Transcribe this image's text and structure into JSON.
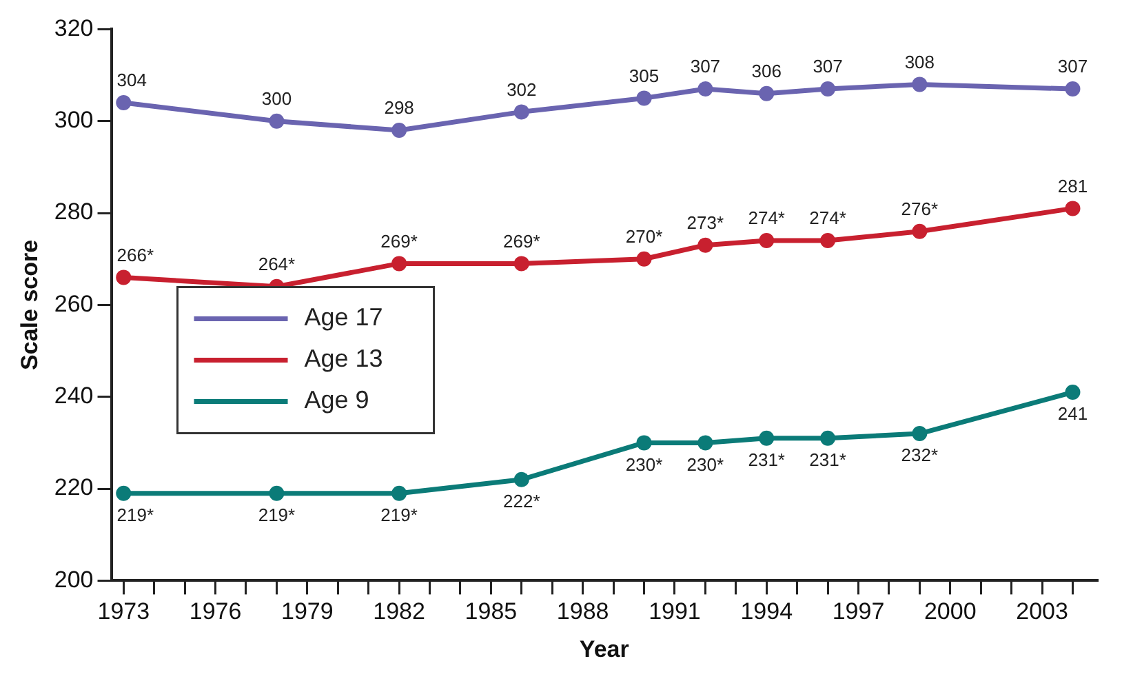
{
  "chart_data": {
    "type": "line",
    "xlabel": "Year",
    "ylabel": "Scale score",
    "x": [
      1973,
      1978,
      1982,
      1986,
      1990,
      1992,
      1994,
      1996,
      1999,
      2004
    ],
    "series": [
      {
        "name": "Age 17",
        "color": "#6a64b0",
        "values": [
          304,
          300,
          298,
          302,
          305,
          307,
          306,
          307,
          308,
          307
        ],
        "value_labels": [
          "304",
          "300",
          "298",
          "302",
          "305",
          "307",
          "306",
          "307",
          "308",
          "307"
        ]
      },
      {
        "name": "Age 13",
        "color": "#c8202f",
        "values": [
          266,
          264,
          269,
          269,
          270,
          273,
          274,
          274,
          276,
          281
        ],
        "value_labels": [
          "266*",
          "264*",
          "269*",
          "269*",
          "270*",
          "273*",
          "274*",
          "274*",
          "276*",
          "281"
        ]
      },
      {
        "name": "Age 9",
        "color": "#0b7b78",
        "values": [
          219,
          219,
          219,
          222,
          230,
          230,
          231,
          231,
          232,
          241
        ],
        "value_labels": [
          "219*",
          "219*",
          "219*",
          "222*",
          "230*",
          "230*",
          "231*",
          "231*",
          "232*",
          "241"
        ]
      }
    ],
    "xlim": [
      1972.6,
      2004.8
    ],
    "xticks": [
      1973,
      {
        "value": 1974,
        "label": null
      },
      {
        "value": 1975,
        "label": null
      },
      1976,
      {
        "value": 1977,
        "label": null
      },
      {
        "value": 1978,
        "label": null
      },
      1979,
      {
        "value": 1980,
        "label": null
      },
      {
        "value": 1981,
        "label": null
      },
      1982,
      {
        "value": 1983,
        "label": null
      },
      {
        "value": 1984,
        "label": null
      },
      1985,
      {
        "value": 1986,
        "label": null
      },
      {
        "value": 1987,
        "label": null
      },
      1988,
      {
        "value": 1989,
        "label": null
      },
      {
        "value": 1990,
        "label": null
      },
      1991,
      {
        "value": 1992,
        "label": null
      },
      {
        "value": 1993,
        "label": null
      },
      1994,
      {
        "value": 1995,
        "label": null
      },
      {
        "value": 1996,
        "label": null
      },
      1997,
      {
        "value": 1998,
        "label": null
      },
      {
        "value": 1999,
        "label": null
      },
      2000,
      {
        "value": 2001,
        "label": null
      },
      {
        "value": 2002,
        "label": null
      },
      2003,
      {
        "value": 2004,
        "label": null
      }
    ],
    "ylim": [
      200,
      320
    ],
    "yticks": [
      200,
      220,
      240,
      260,
      280,
      300,
      320
    ],
    "grid": false,
    "legend": "left",
    "marker": "circle",
    "line_style": "solid"
  }
}
